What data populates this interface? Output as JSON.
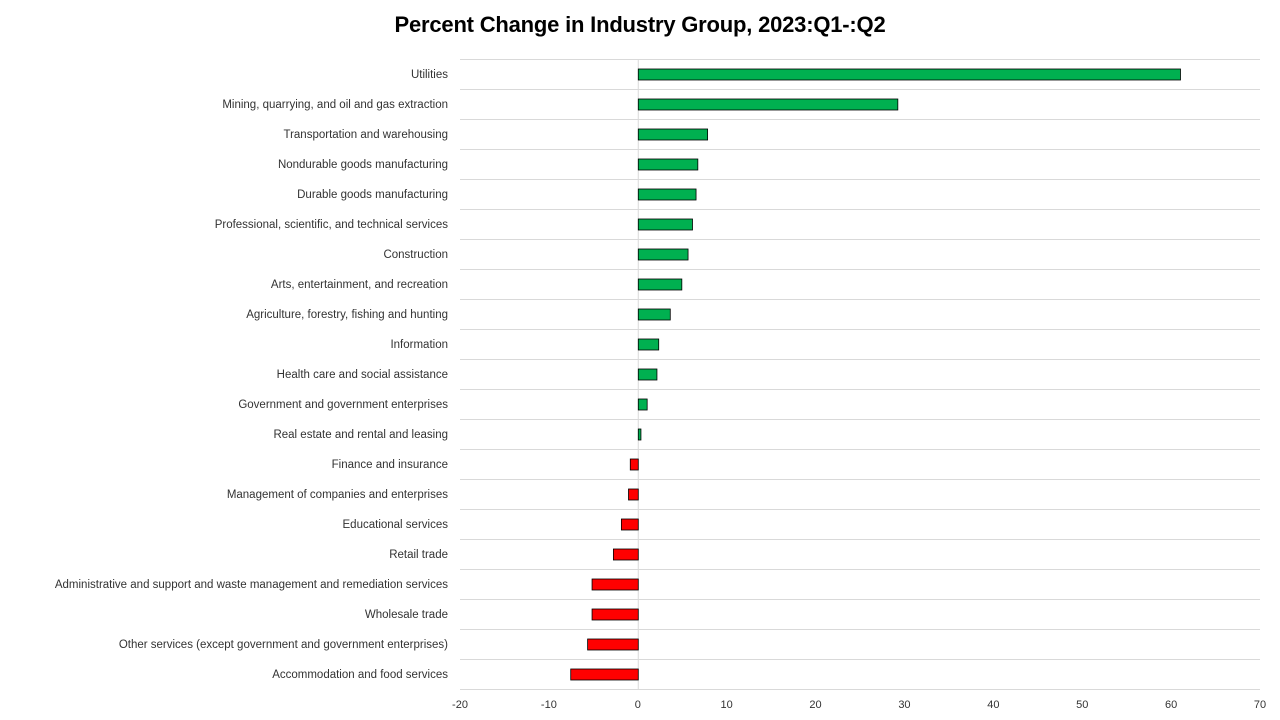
{
  "chart_data": {
    "type": "bar",
    "orientation": "horizontal",
    "title": "Percent Change in Industry Group, 2023:Q1-:Q2",
    "xlabel": "",
    "ylabel": "",
    "xlim": [
      -20,
      70
    ],
    "xticks": [
      -20,
      -10,
      0,
      10,
      20,
      30,
      40,
      50,
      60,
      70
    ],
    "grid": "horizontal",
    "legend": "none",
    "colors": {
      "positive": "#00b050",
      "negative": "#ff0000",
      "outline": "#000000",
      "grid": "#d9d9d9"
    },
    "categories": [
      "Utilities",
      "Mining, quarrying, and oil and gas extraction",
      "Transportation and warehousing",
      "Nondurable goods manufacturing",
      "Durable goods manufacturing",
      "Professional, scientific, and technical services",
      "Construction",
      "Arts, entertainment, and recreation",
      "Agriculture, forestry, fishing and hunting",
      "Information",
      "Health care and social assistance",
      "Government and government enterprises",
      "Real estate and rental and leasing",
      "Finance and insurance",
      "Management of companies and enterprises",
      "Educational services",
      "Retail trade",
      "Administrative and support and waste management and remediation services",
      "Wholesale trade",
      "Other services (except government and government enterprises)",
      "Accommodation and food services"
    ],
    "values": [
      61.0,
      29.2,
      7.8,
      6.7,
      6.5,
      6.1,
      5.6,
      4.9,
      3.6,
      2.3,
      2.1,
      1.0,
      0.3,
      -0.9,
      -1.1,
      -1.9,
      -2.8,
      -5.2,
      -5.2,
      -5.7,
      -7.6
    ]
  }
}
